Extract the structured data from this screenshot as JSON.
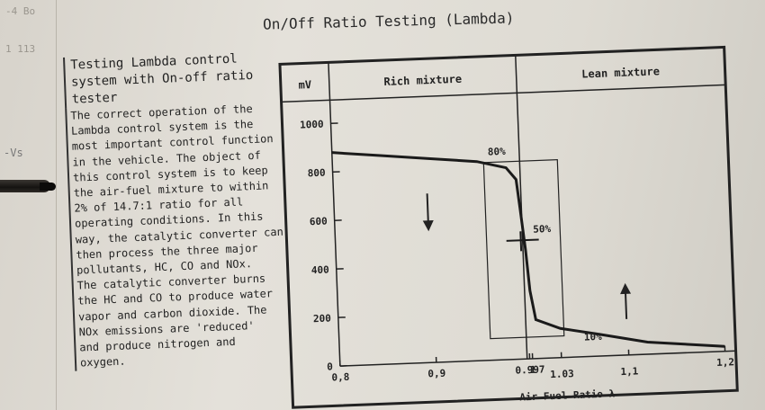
{
  "page_title": "On/Off Ratio Testing (Lambda)",
  "corner_notes": [
    "-4 Bo",
    "1 113"
  ],
  "margin_scribble": "-Vs",
  "text": {
    "heading": [
      "Testing Lambda control",
      "system with On-off ratio",
      "tester"
    ],
    "body": [
      "The correct operation of the",
      "Lambda control system is the",
      "most important control function",
      "in the vehicle. The object of",
      "this control system is to keep",
      "the air-fuel mixture to within",
      "2% of 14.7:1 ratio for all",
      "operating conditions. In this",
      "way, the catalytic converter can",
      "then process the three major",
      "pollutants, HC, CO and NOx.",
      "The catalytic converter burns",
      "the HC and CO to produce water",
      "vapor and carbon dioxide. The",
      "NOx emissions are 'reduced'",
      "and produce nitrogen and",
      "oxygen."
    ]
  },
  "chart_data": {
    "type": "line",
    "ylabel": "mV",
    "xlabel": "Air Fuel Ratio λ",
    "header_left": "Rich mixture",
    "header_right": "Lean mixture",
    "y_ticks": [
      "1000",
      "800",
      "600",
      "400",
      "200",
      "0"
    ],
    "x_ticks": [
      "0,8",
      "0,9",
      "0.997",
      "1",
      "1.03",
      "1,1",
      "1,2"
    ],
    "ylim": [
      0,
      1000
    ],
    "xlim": [
      0.8,
      1.2
    ],
    "annotations": [
      "80%",
      "50%",
      "10%"
    ],
    "series": [
      {
        "x": [
          0.8,
          0.85,
          0.9,
          0.95,
          0.98,
          0.99,
          0.993,
          0.997,
          1.0,
          1.005,
          1.03,
          1.07,
          1.12,
          1.2
        ],
        "y": [
          880,
          860,
          840,
          820,
          790,
          740,
          620,
          450,
          280,
          160,
          120,
          90,
          50,
          20
        ]
      }
    ]
  }
}
